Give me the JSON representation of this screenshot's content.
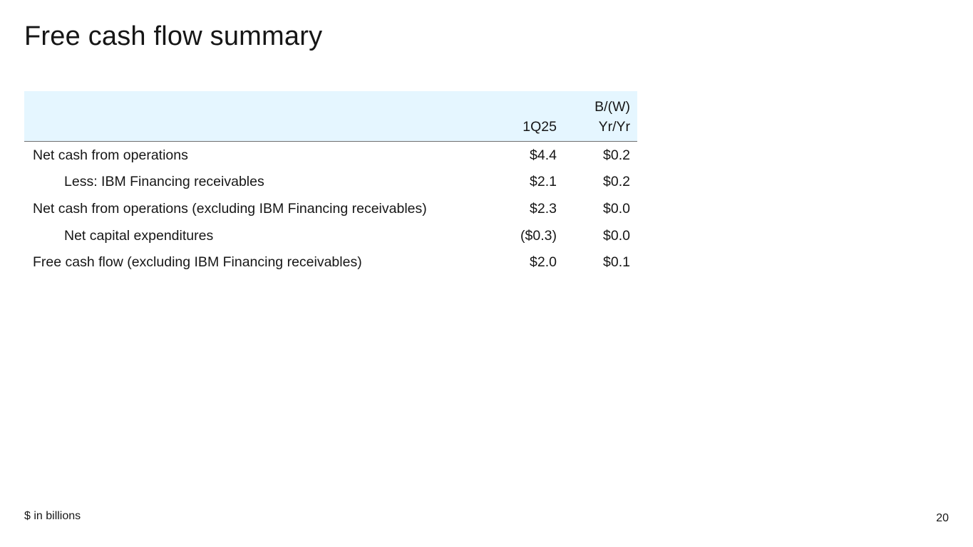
{
  "title": "Free cash flow summary",
  "table": {
    "headers": {
      "label": "",
      "period": "1Q25",
      "change_line1": "B/(W)",
      "change_line2": "Yr/Yr"
    },
    "rows": [
      {
        "label": "Net cash from operations",
        "indent": false,
        "period": "$4.4",
        "change": "$0.2"
      },
      {
        "label": "Less: IBM Financing receivables",
        "indent": true,
        "period": "$2.1",
        "change": "$0.2"
      },
      {
        "label": "Net cash from operations (excluding IBM Financing receivables)",
        "indent": false,
        "period": "$2.3",
        "change": "$0.0"
      },
      {
        "label": "Net capital expenditures",
        "indent": true,
        "period": "($0.3)",
        "change": "$0.0"
      },
      {
        "label": "Free cash flow (excluding IBM Financing receivables)",
        "indent": false,
        "period": "$2.0",
        "change": "$0.1"
      }
    ]
  },
  "footnote": "$ in billions",
  "page_number": "20",
  "colors": {
    "header_background": "#e5f6ff",
    "text": "#161616",
    "header_rule": "#6f6f6f"
  }
}
